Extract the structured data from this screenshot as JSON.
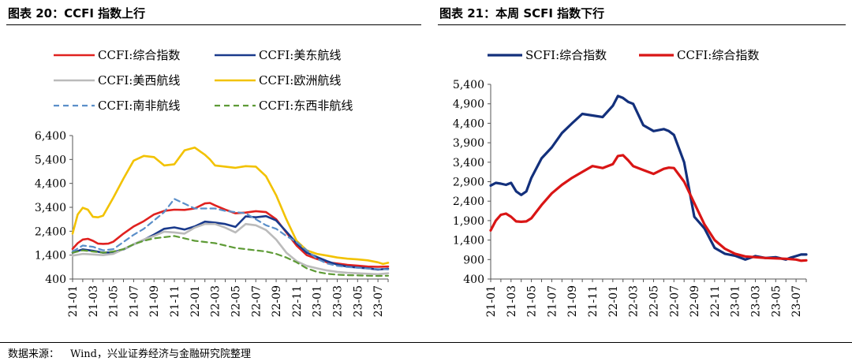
{
  "source": {
    "label": "数据来源：",
    "text": "Wind，兴业证券经济与金融研究院整理"
  },
  "chart_data": [
    {
      "type": "line",
      "title": "图表 20：CCFI 指数上行",
      "ylim": [
        400,
        6400
      ],
      "yticks": [
        "6,400",
        "5,400",
        "4,400",
        "3,400",
        "2,400",
        "1,400",
        "400"
      ],
      "ytick_values": [
        6400,
        5400,
        4400,
        3400,
        2400,
        1400,
        400
      ],
      "xlim": [
        0,
        31
      ],
      "xtick_labels": [
        "21-01",
        "21-03",
        "21-05",
        "21-07",
        "21-09",
        "21-11",
        "22-01",
        "22-03",
        "22-05",
        "22-07",
        "22-09",
        "22-11",
        "23-01",
        "23-03",
        "23-05",
        "23-07"
      ],
      "grid": false,
      "legend": "top",
      "series": [
        {
          "name": "CCFI:综合指数",
          "color": "#e0211f",
          "dash": "solid",
          "x": [
            0,
            0.5,
            1,
            1.5,
            2,
            2.5,
            3,
            3.5,
            4,
            5,
            6,
            7,
            8,
            9,
            10,
            11,
            12,
            13,
            13.5,
            14,
            15,
            16,
            17,
            18,
            19,
            20,
            21,
            22,
            23,
            24,
            25,
            26,
            27,
            28,
            29,
            30,
            31
          ],
          "values": [
            1660,
            1900,
            2050,
            2080,
            2000,
            1880,
            1870,
            1880,
            1960,
            2300,
            2600,
            2820,
            3100,
            3250,
            3300,
            3290,
            3350,
            3560,
            3580,
            3480,
            3300,
            3150,
            3180,
            3240,
            3200,
            2900,
            2350,
            1800,
            1400,
            1240,
            1100,
            1050,
            990,
            960,
            920,
            910,
            920
          ]
        },
        {
          "name": "CCFI:美东航线",
          "color": "#1a3a8c",
          "dash": "solid",
          "x": [
            0,
            1,
            2,
            3,
            4,
            5,
            6,
            7,
            8,
            9,
            10,
            11,
            12,
            13,
            14,
            15,
            16,
            17,
            18,
            19,
            20,
            21,
            22,
            23,
            24,
            25,
            26,
            27,
            28,
            29,
            30,
            31
          ],
          "values": [
            1500,
            1640,
            1580,
            1500,
            1520,
            1640,
            1850,
            2040,
            2260,
            2500,
            2560,
            2470,
            2600,
            2800,
            2760,
            2700,
            2580,
            3020,
            2980,
            3030,
            2850,
            2380,
            1900,
            1500,
            1320,
            1150,
            1000,
            920,
            880,
            850,
            800,
            830
          ]
        },
        {
          "name": "CCFI:美西航线",
          "color": "#bbbbbb",
          "dash": "solid",
          "x": [
            0,
            1,
            2,
            3,
            4,
            5,
            6,
            7,
            8,
            9,
            10,
            11,
            12,
            13,
            14,
            15,
            16,
            17,
            18,
            19,
            20,
            21,
            22,
            23,
            24,
            25,
            26,
            27,
            28,
            29,
            30,
            31
          ],
          "values": [
            1380,
            1450,
            1430,
            1400,
            1450,
            1650,
            1850,
            2050,
            2200,
            2380,
            2350,
            2300,
            2550,
            2700,
            2700,
            2550,
            2350,
            2700,
            2650,
            2450,
            2050,
            1500,
            1150,
            950,
            850,
            760,
            700,
            660,
            640,
            620,
            600,
            640
          ]
        },
        {
          "name": "CCFI:欧洲航线",
          "color": "#f2c200",
          "dash": "solid",
          "x": [
            0,
            0.5,
            1,
            1.5,
            2,
            2.5,
            3,
            4,
            5,
            6,
            7,
            8,
            9,
            10,
            11,
            12,
            13,
            13.5,
            14,
            15,
            16,
            17,
            18,
            19,
            20,
            21,
            22,
            23,
            24,
            25,
            26,
            27,
            28,
            29,
            30,
            30.5,
            31
          ],
          "values": [
            2300,
            3100,
            3380,
            3300,
            3000,
            2980,
            3050,
            3800,
            4600,
            5350,
            5550,
            5500,
            5150,
            5200,
            5780,
            5900,
            5600,
            5400,
            5150,
            5100,
            5050,
            5120,
            5100,
            4700,
            3900,
            2900,
            2000,
            1600,
            1450,
            1380,
            1300,
            1250,
            1220,
            1180,
            1100,
            1030,
            1080
          ]
        },
        {
          "name": "CCFI:南非航线",
          "color": "#5b8fc9",
          "dash": "dashed",
          "x": [
            0,
            1,
            2,
            3,
            4,
            5,
            6,
            7,
            8,
            9,
            10,
            11,
            12,
            13,
            14,
            15,
            16,
            17,
            18,
            19,
            20,
            21,
            22,
            23,
            24,
            25,
            26,
            27,
            28,
            29,
            30,
            31
          ],
          "values": [
            1550,
            1800,
            1750,
            1600,
            1650,
            1950,
            2250,
            2500,
            2850,
            3200,
            3750,
            3550,
            3350,
            3350,
            3350,
            3250,
            3200,
            3150,
            2900,
            2650,
            2500,
            2200,
            1950,
            1600,
            1250,
            1050,
            950,
            900,
            870,
            840,
            820,
            800
          ]
        },
        {
          "name": "CCFI:东西非航线",
          "color": "#5e9b36",
          "dash": "dashed",
          "x": [
            0,
            1,
            2,
            3,
            4,
            5,
            6,
            7,
            8,
            9,
            10,
            11,
            12,
            13,
            14,
            15,
            16,
            17,
            18,
            19,
            20,
            21,
            22,
            23,
            24,
            25,
            26,
            27,
            28,
            29,
            30,
            31
          ],
          "values": [
            1500,
            1600,
            1550,
            1500,
            1550,
            1650,
            1850,
            2000,
            2100,
            2150,
            2200,
            2100,
            2000,
            1950,
            1900,
            1800,
            1700,
            1650,
            1600,
            1550,
            1450,
            1300,
            1100,
            850,
            700,
            620,
            580,
            560,
            550,
            540,
            530,
            540
          ]
        }
      ]
    },
    {
      "type": "line",
      "title": "图表 21：本周 SCFI 指数下行",
      "ylim": [
        400,
        5400
      ],
      "yticks": [
        "5,400",
        "4,900",
        "4,400",
        "3,900",
        "3,400",
        "2,900",
        "2,400",
        "1,900",
        "1,400",
        "900",
        "400"
      ],
      "ytick_values": [
        5400,
        4900,
        4400,
        3900,
        3400,
        2900,
        2400,
        1900,
        1400,
        900,
        400
      ],
      "xlim": [
        0,
        31
      ],
      "xtick_labels": [
        "21-01",
        "21-03",
        "21-05",
        "21-07",
        "21-09",
        "21-11",
        "22-01",
        "22-03",
        "22-05",
        "22-07",
        "22-09",
        "22-11",
        "23-01",
        "23-03",
        "23-05",
        "23-07"
      ],
      "grid": false,
      "legend": "top",
      "series": [
        {
          "name": "SCFI:综合指数",
          "color": "#13307c",
          "dash": "solid",
          "x": [
            0,
            0.5,
            1,
            1.5,
            2,
            2.5,
            3,
            3.5,
            4,
            5,
            6,
            7,
            8,
            9,
            10,
            11,
            12,
            12.5,
            13,
            13.5,
            14,
            15,
            16,
            17,
            17.5,
            18,
            19,
            20,
            21,
            22,
            23,
            24,
            25,
            26,
            27,
            28,
            29,
            29.5,
            30,
            30.5,
            31
          ],
          "values": [
            2800,
            2870,
            2850,
            2820,
            2870,
            2650,
            2560,
            2650,
            3000,
            3500,
            3780,
            4150,
            4400,
            4640,
            4600,
            4560,
            4850,
            5100,
            5050,
            4950,
            4900,
            4350,
            4200,
            4250,
            4200,
            4100,
            3400,
            2000,
            1700,
            1200,
            1050,
            1000,
            900,
            990,
            940,
            960,
            900,
            950,
            990,
            1030,
            1030
          ]
        },
        {
          "name": "CCFI:综合指数",
          "color": "#d91515",
          "dash": "solid",
          "x": [
            0,
            0.5,
            1,
            1.5,
            2,
            2.5,
            3,
            3.5,
            4,
            5,
            6,
            7,
            8,
            9,
            10,
            11,
            12,
            12.5,
            13,
            13.5,
            14,
            15,
            16,
            17,
            17.5,
            18,
            19,
            20,
            21,
            22,
            23,
            24,
            25,
            26,
            27,
            28,
            29,
            30,
            30.5,
            31
          ],
          "values": [
            1650,
            1900,
            2050,
            2080,
            2000,
            1880,
            1870,
            1880,
            1960,
            2300,
            2600,
            2820,
            3000,
            3150,
            3300,
            3250,
            3350,
            3560,
            3580,
            3450,
            3300,
            3200,
            3100,
            3230,
            3260,
            3250,
            2900,
            2350,
            1800,
            1400,
            1180,
            1050,
            980,
            960,
            940,
            930,
            920,
            900,
            870,
            880
          ]
        }
      ]
    }
  ]
}
